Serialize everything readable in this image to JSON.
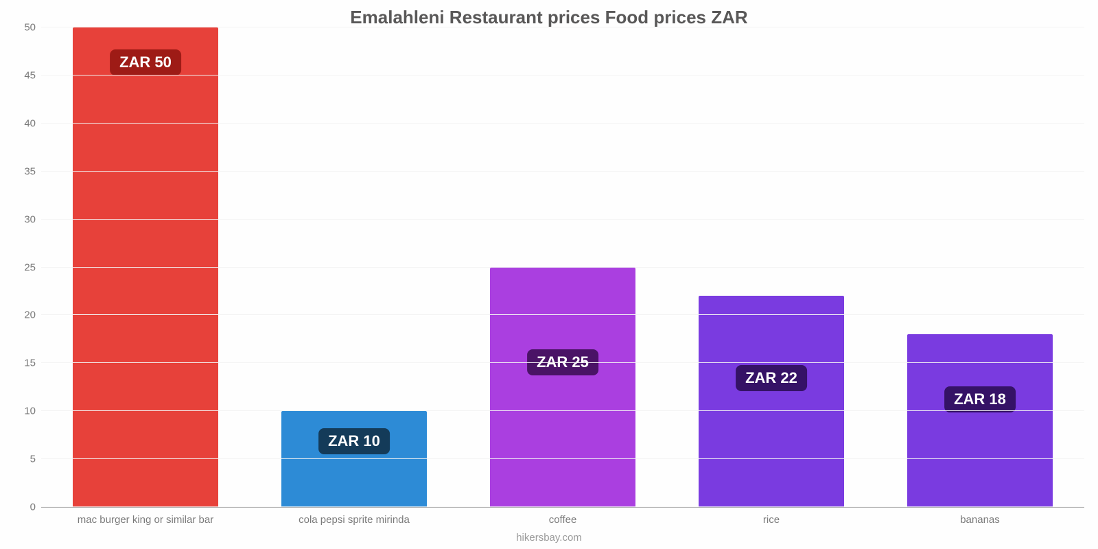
{
  "chart": {
    "type": "bar",
    "title": "Emalahleni Restaurant prices Food prices ZAR",
    "title_fontsize": 26,
    "title_color": "#595858",
    "attribution": "hikersbay.com",
    "background_color": "#ffffff",
    "grid_color": "#f3f3f3",
    "axis_line_color": "#b8b8b8",
    "y": {
      "min": 0,
      "max": 50,
      "tick_step": 5,
      "ticks": [
        0,
        5,
        10,
        15,
        20,
        25,
        30,
        35,
        40,
        45,
        50
      ],
      "tick_fontsize": 15,
      "tick_color": "#7a7a7a"
    },
    "x": {
      "tick_fontsize": 15,
      "tick_color": "#7a7a7a"
    },
    "bar_width_pct": 70,
    "label_fontsize": 22,
    "currency_prefix": "ZAR ",
    "items": [
      {
        "category": "mac burger king or similar bar",
        "value": 50,
        "bar_color": "#e7413a",
        "label_bg": "#9e1b16",
        "label_text": "ZAR 50"
      },
      {
        "category": "cola pepsi sprite mirinda",
        "value": 10,
        "bar_color": "#2d8bd6",
        "label_bg": "#143b59",
        "label_text": "ZAR 10"
      },
      {
        "category": "coffee",
        "value": 25,
        "bar_color": "#aa3fe0",
        "label_bg": "#4a1366",
        "label_text": "ZAR 25"
      },
      {
        "category": "rice",
        "value": 22,
        "bar_color": "#7a3be0",
        "label_bg": "#351266",
        "label_text": "ZAR 22"
      },
      {
        "category": "bananas",
        "value": 18,
        "bar_color": "#7a3be0",
        "label_bg": "#351266",
        "label_text": "ZAR 18"
      }
    ]
  }
}
